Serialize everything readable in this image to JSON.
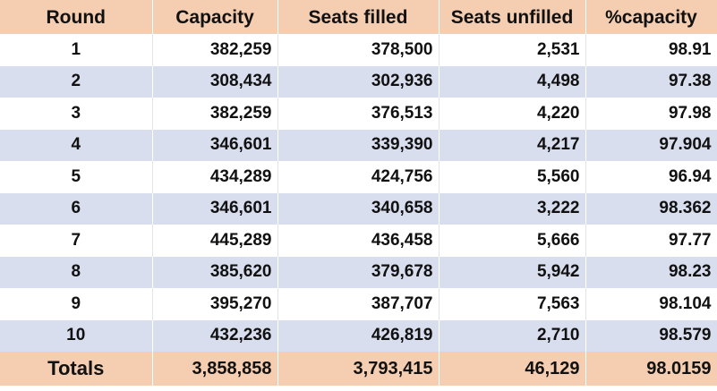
{
  "table": {
    "headers": [
      "Round",
      "Capacity",
      "Seats filled",
      "Seats unfilled",
      "%capacity"
    ],
    "rows": [
      [
        "1",
        "382,259",
        "378,500",
        "2,531",
        "98.91"
      ],
      [
        "2",
        "308,434",
        "302,936",
        "4,498",
        "97.38"
      ],
      [
        "3",
        "382,259",
        "376,513",
        "4,220",
        "97.98"
      ],
      [
        "4",
        "346,601",
        "339,390",
        "4,217",
        "97.904"
      ],
      [
        "5",
        "434,289",
        "424,756",
        "5,560",
        "96.94"
      ],
      [
        "6",
        "346,601",
        "340,658",
        "3,222",
        "98.362"
      ],
      [
        "7",
        "445,289",
        "436,458",
        "5,666",
        "97.77"
      ],
      [
        "8",
        "385,620",
        "379,678",
        "5,942",
        "98.23"
      ],
      [
        "9",
        "395,270",
        "387,707",
        "7,563",
        "98.104"
      ],
      [
        "10",
        "432,236",
        "426,819",
        "2,710",
        "98.579"
      ]
    ],
    "totals": [
      "Totals",
      "3,858,858",
      "3,793,415",
      "46,129",
      "98.0159"
    ]
  },
  "colors": {
    "header_background": "#f5cdb0",
    "band_background": "#d9deef",
    "row_background": "#ffffff",
    "text": "#111111"
  }
}
